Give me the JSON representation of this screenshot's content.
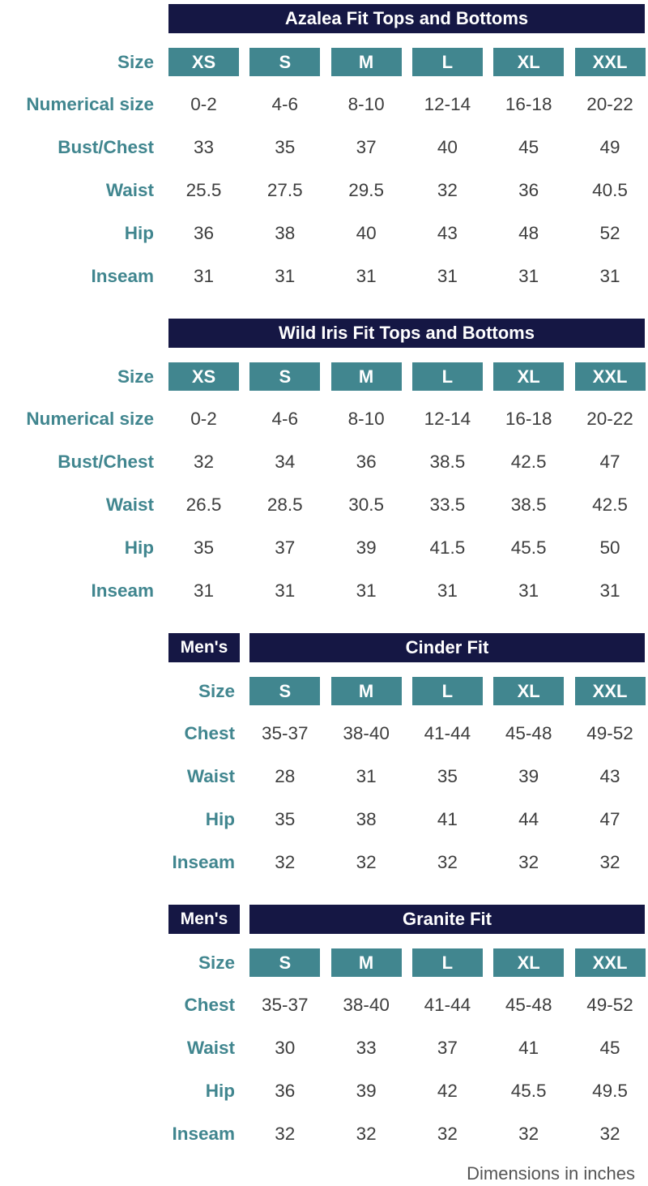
{
  "footnote": "Dimensions in inches",
  "tables": [
    {
      "id": "azalea",
      "title": "Azalea Fit Tops and Bottoms",
      "mens_label": "",
      "size_label": "Size",
      "sizes": [
        "XS",
        "S",
        "M",
        "L",
        "XL",
        "XXL"
      ],
      "rows": [
        {
          "label": "Numerical size",
          "values": [
            "0-2",
            "4-6",
            "8-10",
            "12-14",
            "16-18",
            "20-22"
          ]
        },
        {
          "label": "Bust/Chest",
          "values": [
            "33",
            "35",
            "37",
            "40",
            "45",
            "49"
          ]
        },
        {
          "label": "Waist",
          "values": [
            "25.5",
            "27.5",
            "29.5",
            "32",
            "36",
            "40.5"
          ]
        },
        {
          "label": "Hip",
          "values": [
            "36",
            "38",
            "40",
            "43",
            "48",
            "52"
          ]
        },
        {
          "label": "Inseam",
          "values": [
            "31",
            "31",
            "31",
            "31",
            "31",
            "31"
          ]
        }
      ]
    },
    {
      "id": "wild-iris",
      "title": "Wild Iris Fit Tops and Bottoms",
      "mens_label": "",
      "size_label": "Size",
      "sizes": [
        "XS",
        "S",
        "M",
        "L",
        "XL",
        "XXL"
      ],
      "rows": [
        {
          "label": "Numerical size",
          "values": [
            "0-2",
            "4-6",
            "8-10",
            "12-14",
            "16-18",
            "20-22"
          ]
        },
        {
          "label": "Bust/Chest",
          "values": [
            "32",
            "34",
            "36",
            "38.5",
            "42.5",
            "47"
          ]
        },
        {
          "label": "Waist",
          "values": [
            "26.5",
            "28.5",
            "30.5",
            "33.5",
            "38.5",
            "42.5"
          ]
        },
        {
          "label": "Hip",
          "values": [
            "35",
            "37",
            "39",
            "41.5",
            "45.5",
            "50"
          ]
        },
        {
          "label": "Inseam",
          "values": [
            "31",
            "31",
            "31",
            "31",
            "31",
            "31"
          ]
        }
      ]
    },
    {
      "id": "cinder",
      "title": "Cinder Fit",
      "mens_label": "Men's",
      "size_label": "Size",
      "sizes": [
        "S",
        "M",
        "L",
        "XL",
        "XXL"
      ],
      "rows": [
        {
          "label": "Chest",
          "values": [
            "35-37",
            "38-40",
            "41-44",
            "45-48",
            "49-52"
          ]
        },
        {
          "label": "Waist",
          "values": [
            "28",
            "31",
            "35",
            "39",
            "43"
          ]
        },
        {
          "label": "Hip",
          "values": [
            "35",
            "38",
            "41",
            "44",
            "47"
          ]
        },
        {
          "label": "Inseam",
          "values": [
            "32",
            "32",
            "32",
            "32",
            "32"
          ]
        }
      ]
    },
    {
      "id": "granite",
      "title": "Granite Fit",
      "mens_label": "Men's",
      "size_label": "Size",
      "sizes": [
        "S",
        "M",
        "L",
        "XL",
        "XXL"
      ],
      "rows": [
        {
          "label": "Chest",
          "values": [
            "35-37",
            "38-40",
            "41-44",
            "45-48",
            "49-52"
          ]
        },
        {
          "label": "Waist",
          "values": [
            "30",
            "33",
            "37",
            "41",
            "45"
          ]
        },
        {
          "label": "Hip",
          "values": [
            "36",
            "39",
            "42",
            "45.5",
            "49.5"
          ]
        },
        {
          "label": "Inseam",
          "values": [
            "32",
            "32",
            "32",
            "32",
            "32"
          ]
        }
      ]
    }
  ]
}
